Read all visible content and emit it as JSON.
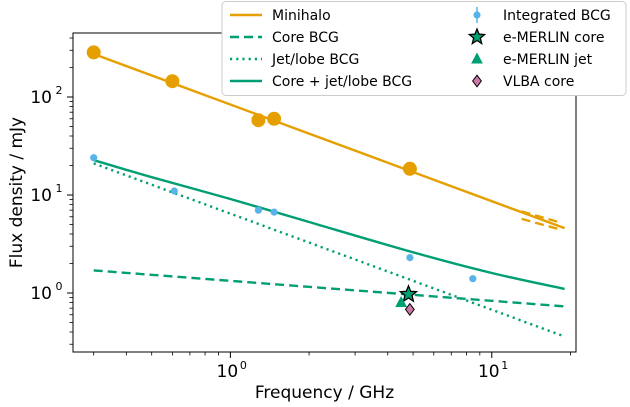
{
  "chart_data": {
    "type": "scatter",
    "title": "",
    "xlabel": "Frequency / GHz",
    "ylabel": "Flux density / mJy",
    "xscale": "log",
    "yscale": "log",
    "xlim": [
      0.25,
      21
    ],
    "ylim": [
      0.25,
      450
    ],
    "x_ticks": [
      {
        "value": 1,
        "base": "10",
        "exp": "0"
      },
      {
        "value": 10,
        "base": "10",
        "exp": "1"
      }
    ],
    "y_ticks": [
      {
        "value": 1,
        "base": "10",
        "exp": "0"
      },
      {
        "value": 10,
        "base": "10",
        "exp": "1"
      },
      {
        "value": 100,
        "base": "10",
        "exp": "2"
      }
    ],
    "legend_position": "top-right, outside plot",
    "legend": {
      "left": [
        {
          "label": "Minihalo",
          "kind": "line",
          "color": "#E69F00",
          "dash": "solid"
        },
        {
          "label": "Core BCG",
          "kind": "line",
          "color": "#009E73",
          "dash": "dashed"
        },
        {
          "label": "Jet/lobe BCG",
          "kind": "line",
          "color": "#009E73",
          "dash": "dotted"
        },
        {
          "label": "Core + jet/lobe BCG",
          "kind": "line",
          "color": "#009E73",
          "dash": "solid"
        }
      ],
      "right": [
        {
          "label": "Integrated BCG",
          "kind": "point-errorbar",
          "color": "#56B4E9"
        },
        {
          "label": "e-MERLIN core",
          "kind": "star",
          "color": "#009E73"
        },
        {
          "label": "e-MERLIN jet",
          "kind": "triangle",
          "color": "#009E73"
        },
        {
          "label": "VLBA core",
          "kind": "diamond",
          "color": "#CC79A7"
        }
      ]
    },
    "series": [
      {
        "name": "Minihalo",
        "kind": "line",
        "color": "#E69F00",
        "dash": "solid",
        "x": [
          0.3,
          19
        ],
        "y": [
          275,
          4.6
        ]
      },
      {
        "name": "Minihalo",
        "kind": "line",
        "color": "#E69F00",
        "dash": "dashed",
        "x": [
          13,
          18
        ],
        "y": [
          6.8,
          5.3
        ]
      },
      {
        "name": "Minihalo",
        "kind": "line",
        "color": "#E69F00",
        "dash": "dashed",
        "x": [
          13,
          18
        ],
        "y": [
          5.7,
          4.5
        ]
      },
      {
        "name": "Minihalo",
        "kind": "points",
        "color": "#E69F00",
        "x": [
          0.3,
          0.6,
          1.28,
          1.47,
          4.86
        ],
        "y": [
          285,
          145,
          58,
          60,
          18.5
        ]
      },
      {
        "name": "Core BCG",
        "kind": "line",
        "color": "#009E73",
        "dash": "dashed",
        "x": [
          0.3,
          19
        ],
        "y": [
          1.7,
          0.73
        ]
      },
      {
        "name": "Jet/lobe BCG",
        "kind": "line",
        "color": "#009E73",
        "dash": "dotted",
        "x": [
          0.3,
          19
        ],
        "y": [
          21,
          0.36
        ]
      },
      {
        "name": "Core + jet/lobe BCG",
        "kind": "curve",
        "color": "#009E73",
        "dash": "solid",
        "x": [
          0.3,
          0.5,
          1,
          2,
          5,
          10,
          19
        ],
        "y": [
          22.7,
          15.2,
          9.1,
          5.3,
          2.6,
          1.6,
          1.1
        ]
      },
      {
        "name": "Integrated BCG",
        "kind": "points",
        "color": "#56B4E9",
        "x": [
          0.3,
          0.61,
          1.28,
          1.47,
          4.86,
          8.46
        ],
        "y": [
          24,
          11,
          7.0,
          6.7,
          2.3,
          1.4
        ]
      },
      {
        "name": "e-MERLIN core",
        "kind": "star",
        "color": "#009E73",
        "x": [
          4.8
        ],
        "y": [
          0.97
        ]
      },
      {
        "name": "e-MERLIN jet",
        "kind": "triangle",
        "color": "#009E73",
        "x": [
          4.5
        ],
        "y": [
          0.8
        ]
      },
      {
        "name": "VLBA core",
        "kind": "diamond",
        "color": "#CC79A7",
        "x": [
          4.86
        ],
        "y": [
          0.68
        ]
      }
    ]
  }
}
